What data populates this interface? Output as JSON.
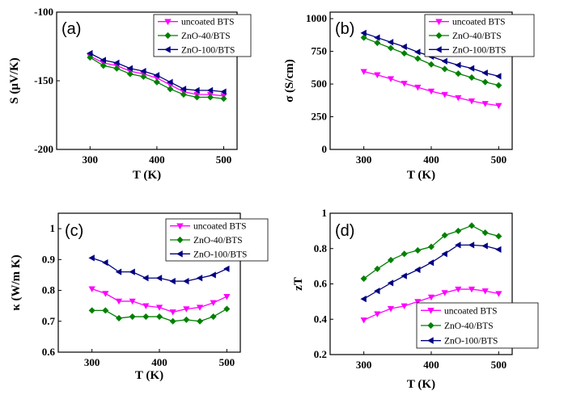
{
  "chart_data": [
    {
      "type": "line",
      "panel": "(a)",
      "xlabel": "T (K)",
      "ylabel": "S (μV/K)",
      "xlim": [
        250,
        520
      ],
      "ylim": [
        -200,
        -100
      ],
      "xticks": [
        300,
        400,
        500
      ],
      "yticks": [
        -100,
        -150,
        -200
      ],
      "legend": "top-right",
      "series": [
        {
          "name": "uncoated BTS",
          "color": "#ff00ff",
          "marker": "triangle-down",
          "x": [
            300,
            320,
            340,
            360,
            380,
            400,
            420,
            440,
            460,
            480,
            500
          ],
          "y": [
            -132,
            -137,
            -139,
            -143,
            -145,
            -148,
            -153,
            -158,
            -160,
            -160,
            -161
          ]
        },
        {
          "name": "ZnO-40/BTS",
          "color": "#008000",
          "marker": "diamond",
          "x": [
            300,
            320,
            340,
            360,
            380,
            400,
            420,
            440,
            460,
            480,
            500
          ],
          "y": [
            -133,
            -139,
            -141,
            -145,
            -147,
            -151,
            -156,
            -160,
            -162,
            -162,
            -163
          ]
        },
        {
          "name": "ZnO-100/BTS",
          "color": "#000080",
          "marker": "triangle-left",
          "x": [
            300,
            320,
            340,
            360,
            380,
            400,
            420,
            440,
            460,
            480,
            500
          ],
          "y": [
            -130,
            -135,
            -137,
            -141,
            -143,
            -146,
            -151,
            -156,
            -157,
            -157,
            -158
          ]
        }
      ]
    },
    {
      "type": "line",
      "panel": "(b)",
      "xlabel": "T (K)",
      "ylabel": "σ (S/cm)",
      "xlim": [
        250,
        520
      ],
      "ylim": [
        0,
        1050
      ],
      "xticks": [
        300,
        400,
        500
      ],
      "yticks": [
        0,
        250,
        500,
        750,
        1000
      ],
      "legend": "top-right",
      "series": [
        {
          "name": "uncoated BTS",
          "color": "#ff00ff",
          "marker": "triangle-down",
          "x": [
            300,
            320,
            340,
            360,
            380,
            400,
            420,
            440,
            460,
            480,
            500
          ],
          "y": [
            595,
            570,
            540,
            505,
            475,
            445,
            420,
            395,
            370,
            350,
            335
          ]
        },
        {
          "name": "ZnO-40/BTS",
          "color": "#008000",
          "marker": "diamond",
          "x": [
            300,
            320,
            340,
            360,
            380,
            400,
            420,
            440,
            460,
            480,
            500
          ],
          "y": [
            855,
            815,
            775,
            735,
            695,
            650,
            615,
            580,
            550,
            515,
            490
          ]
        },
        {
          "name": "ZnO-100/BTS",
          "color": "#000080",
          "marker": "triangle-left",
          "x": [
            300,
            320,
            340,
            360,
            380,
            400,
            420,
            440,
            460,
            480,
            500
          ],
          "y": [
            890,
            855,
            820,
            785,
            745,
            710,
            675,
            645,
            620,
            585,
            560
          ]
        }
      ]
    },
    {
      "type": "line",
      "panel": "(c)",
      "xlabel": "T (K)",
      "ylabel": "κ (W/m K)",
      "xlim": [
        250,
        520
      ],
      "ylim": [
        0.6,
        1.05
      ],
      "xticks": [
        300,
        400,
        500
      ],
      "yticks": [
        0.6,
        0.7,
        0.8,
        0.9,
        1.0
      ],
      "legend": "top-right",
      "series": [
        {
          "name": "uncoated BTS",
          "color": "#ff00ff",
          "marker": "triangle-down",
          "x": [
            300,
            320,
            340,
            360,
            380,
            400,
            420,
            440,
            460,
            480,
            500
          ],
          "y": [
            0.805,
            0.79,
            0.765,
            0.765,
            0.75,
            0.745,
            0.73,
            0.74,
            0.745,
            0.76,
            0.78
          ]
        },
        {
          "name": "ZnO-40/BTS",
          "color": "#008000",
          "marker": "diamond",
          "x": [
            300,
            320,
            340,
            360,
            380,
            400,
            420,
            440,
            460,
            480,
            500
          ],
          "y": [
            0.735,
            0.735,
            0.71,
            0.715,
            0.715,
            0.715,
            0.7,
            0.705,
            0.7,
            0.715,
            0.74
          ]
        },
        {
          "name": "ZnO-100/BTS",
          "color": "#000080",
          "marker": "triangle-left",
          "x": [
            300,
            320,
            340,
            360,
            380,
            400,
            420,
            440,
            460,
            480,
            500
          ],
          "y": [
            0.905,
            0.89,
            0.86,
            0.86,
            0.84,
            0.84,
            0.83,
            0.83,
            0.84,
            0.85,
            0.87
          ]
        }
      ]
    },
    {
      "type": "line",
      "panel": "(d)",
      "xlabel": "T (K)",
      "ylabel": "zT",
      "xlim": [
        250,
        520
      ],
      "ylim": [
        0.2,
        1.0
      ],
      "xticks": [
        300,
        400,
        500
      ],
      "yticks": [
        0.2,
        0.4,
        0.6,
        0.8,
        1.0
      ],
      "legend": "bottom-right",
      "series": [
        {
          "name": "uncoated BTS",
          "color": "#ff00ff",
          "marker": "triangle-down",
          "x": [
            300,
            320,
            340,
            360,
            380,
            400,
            420,
            440,
            460,
            480,
            500
          ],
          "y": [
            0.395,
            0.43,
            0.46,
            0.475,
            0.5,
            0.525,
            0.55,
            0.57,
            0.57,
            0.56,
            0.545
          ]
        },
        {
          "name": "ZnO-40/BTS",
          "color": "#008000",
          "marker": "diamond",
          "x": [
            300,
            320,
            340,
            360,
            380,
            400,
            420,
            440,
            460,
            480,
            500
          ],
          "y": [
            0.63,
            0.685,
            0.735,
            0.77,
            0.79,
            0.81,
            0.875,
            0.9,
            0.93,
            0.89,
            0.87
          ]
        },
        {
          "name": "ZnO-100/BTS",
          "color": "#000080",
          "marker": "triangle-left",
          "x": [
            300,
            320,
            340,
            360,
            380,
            400,
            420,
            440,
            460,
            480,
            500
          ],
          "y": [
            0.515,
            0.56,
            0.605,
            0.645,
            0.68,
            0.72,
            0.77,
            0.82,
            0.82,
            0.815,
            0.795
          ]
        }
      ]
    }
  ]
}
